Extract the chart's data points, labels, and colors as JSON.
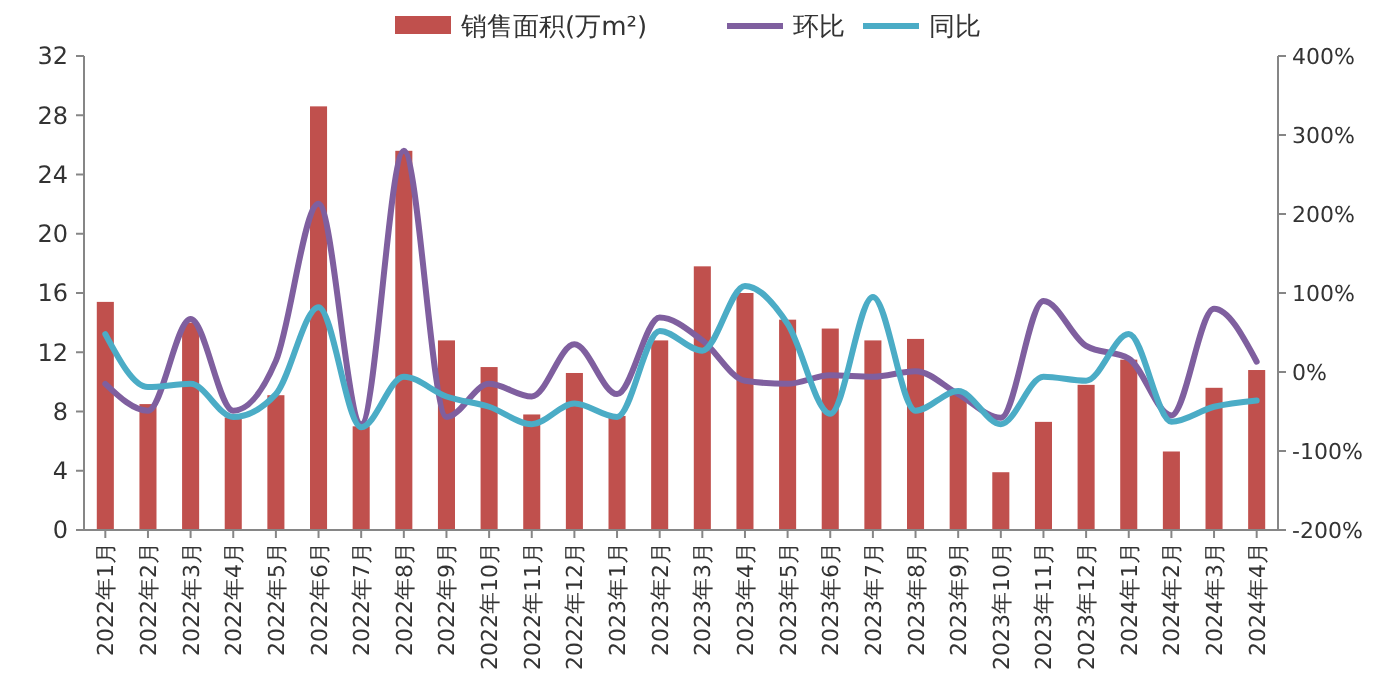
{
  "chart_data": {
    "type": "bar",
    "categories": [
      "2022年1月",
      "2022年2月",
      "2022年3月",
      "2022年4月",
      "2022年5月",
      "2022年6月",
      "2022年7月",
      "2022年8月",
      "2022年9月",
      "2022年10月",
      "2022年11月",
      "2022年12月",
      "2023年1月",
      "2023年2月",
      "2023年3月",
      "2023年4月",
      "2023年5月",
      "2023年6月",
      "2023年7月",
      "2023年8月",
      "2023年9月",
      "2023年10月",
      "2023年11月",
      "2023年12月",
      "2024年1月",
      "2024年2月",
      "2024年3月",
      "2024年4月"
    ],
    "series": [
      {
        "name": "销售面积(万m²)",
        "color": "#c0504d",
        "values": [
          15.4,
          8.5,
          14,
          7.6,
          9.1,
          28.6,
          7.0,
          25.6,
          12.8,
          11.0,
          7.8,
          10.6,
          7.7,
          12.8,
          17.8,
          16.0,
          14.2,
          13.6,
          12.8,
          12.9,
          9.4,
          3.9,
          7.3,
          9.8,
          11.5,
          5.3,
          9.6,
          10.8
        ]
      },
      {
        "name": "环比",
        "type": "line",
        "axis": "y2",
        "color": "#7f5f9f",
        "values": [
          -15,
          -49,
          67,
          -49,
          14,
          213,
          -66,
          280,
          -57,
          -15,
          -31,
          35,
          -28,
          69,
          40,
          -11,
          -15,
          -4,
          -6,
          1,
          -28,
          -58,
          90,
          33,
          17,
          -55,
          80,
          13
        ]
      },
      {
        "name": "同比",
        "type": "line",
        "axis": "y2",
        "color": "#4bacc6",
        "values": [
          48,
          -19,
          -15,
          -57,
          -28,
          82,
          -70,
          -6,
          -31,
          -44,
          -66,
          -40,
          -57,
          52,
          27,
          109,
          61,
          -53,
          95,
          -49,
          -24,
          -66,
          -6,
          -11,
          48,
          -63,
          -44,
          -36
        ]
      }
    ],
    "ylim": [
      0,
      32
    ],
    "yticks": [
      0,
      4,
      8,
      12,
      16,
      20,
      24,
      28,
      32
    ],
    "y2lim": [
      -200,
      400
    ],
    "y2ticks": [
      {
        "value": -200,
        "label": "-200%"
      },
      {
        "value": -100,
        "label": "-100%"
      },
      {
        "value": 0,
        "label": "0%"
      },
      {
        "value": 100,
        "label": "100%"
      },
      {
        "value": 200,
        "label": "200%"
      },
      {
        "value": 300,
        "label": "300%"
      },
      {
        "value": 400,
        "label": "400%"
      }
    ],
    "legend": "top",
    "grid": false
  }
}
